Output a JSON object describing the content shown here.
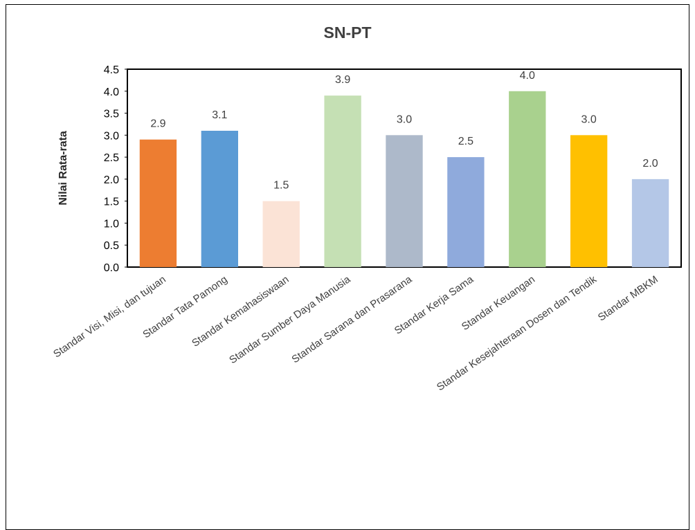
{
  "chart_data": {
    "type": "bar",
    "title": "SN-PT",
    "ylabel": "Nilai Rata-rata",
    "xlabel": "",
    "ylim": [
      0,
      4.5
    ],
    "yticks": [
      "0.0",
      "0.5",
      "1.0",
      "1.5",
      "2.0",
      "2.5",
      "3.0",
      "3.5",
      "4.0",
      "4.5"
    ],
    "categories": [
      "Standar Visi, Misi, dan tujuan",
      "Standar Tata Pamong",
      "Standar Kemahasiswaan",
      "Standar Sumber Daya Manusia",
      "Standar Sarana dan Prasarana",
      "Standar Kerja Sama",
      "Standar Keuangan",
      "Standar Kesejahteraan Dosen dan Tendik",
      "Standar MBKM"
    ],
    "values": [
      2.9,
      3.1,
      1.5,
      3.9,
      3.0,
      2.5,
      4.0,
      3.0,
      2.0
    ],
    "value_labels": [
      "2.9",
      "3.1",
      "1.5",
      "3.9",
      "3.0",
      "2.5",
      "4.0",
      "3.0",
      "2.0"
    ],
    "colors": [
      "#ED7D31",
      "#5B9BD5",
      "#FBE3D6",
      "#C5E0B4",
      "#ADB9CA",
      "#8FAADC",
      "#A9D18E",
      "#FFC000",
      "#B4C7E7"
    ],
    "grid": false,
    "legend": "none"
  }
}
